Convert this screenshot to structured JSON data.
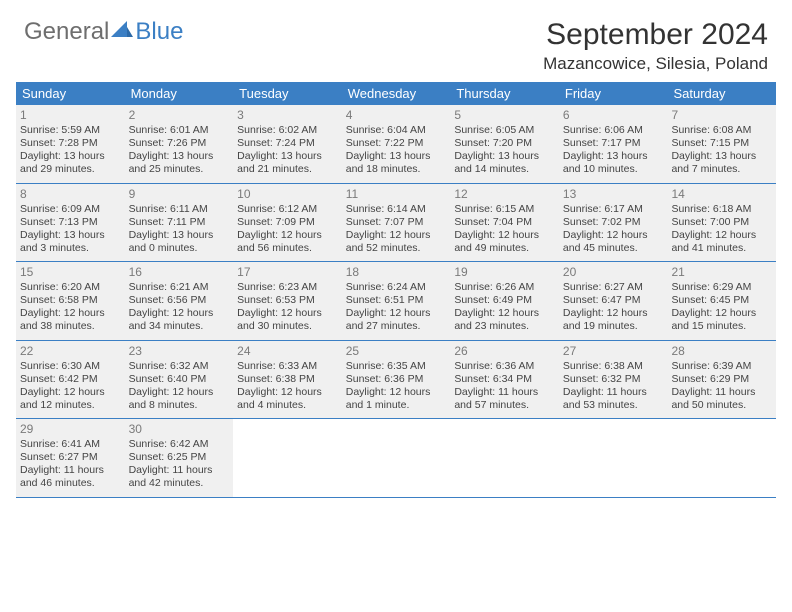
{
  "logo": {
    "text1": "General",
    "text2": "Blue"
  },
  "title": "September 2024",
  "location": "Mazancowice, Silesia, Poland",
  "colors": {
    "header_bg": "#3b7fc4",
    "header_text": "#ffffff",
    "cell_bg": "#f0f0f0",
    "cell_text": "#444444",
    "daynum": "#7a7a7a",
    "border": "#3b7fc4",
    "page_bg": "#ffffff",
    "logo_gray": "#6e6e6e",
    "logo_blue": "#3b7fc4"
  },
  "day_headers": [
    "Sunday",
    "Monday",
    "Tuesday",
    "Wednesday",
    "Thursday",
    "Friday",
    "Saturday"
  ],
  "weeks": [
    [
      {
        "n": "1",
        "sr": "Sunrise: 5:59 AM",
        "ss": "Sunset: 7:28 PM",
        "dl": "Daylight: 13 hours and 29 minutes."
      },
      {
        "n": "2",
        "sr": "Sunrise: 6:01 AM",
        "ss": "Sunset: 7:26 PM",
        "dl": "Daylight: 13 hours and 25 minutes."
      },
      {
        "n": "3",
        "sr": "Sunrise: 6:02 AM",
        "ss": "Sunset: 7:24 PM",
        "dl": "Daylight: 13 hours and 21 minutes."
      },
      {
        "n": "4",
        "sr": "Sunrise: 6:04 AM",
        "ss": "Sunset: 7:22 PM",
        "dl": "Daylight: 13 hours and 18 minutes."
      },
      {
        "n": "5",
        "sr": "Sunrise: 6:05 AM",
        "ss": "Sunset: 7:20 PM",
        "dl": "Daylight: 13 hours and 14 minutes."
      },
      {
        "n": "6",
        "sr": "Sunrise: 6:06 AM",
        "ss": "Sunset: 7:17 PM",
        "dl": "Daylight: 13 hours and 10 minutes."
      },
      {
        "n": "7",
        "sr": "Sunrise: 6:08 AM",
        "ss": "Sunset: 7:15 PM",
        "dl": "Daylight: 13 hours and 7 minutes."
      }
    ],
    [
      {
        "n": "8",
        "sr": "Sunrise: 6:09 AM",
        "ss": "Sunset: 7:13 PM",
        "dl": "Daylight: 13 hours and 3 minutes."
      },
      {
        "n": "9",
        "sr": "Sunrise: 6:11 AM",
        "ss": "Sunset: 7:11 PM",
        "dl": "Daylight: 13 hours and 0 minutes."
      },
      {
        "n": "10",
        "sr": "Sunrise: 6:12 AM",
        "ss": "Sunset: 7:09 PM",
        "dl": "Daylight: 12 hours and 56 minutes."
      },
      {
        "n": "11",
        "sr": "Sunrise: 6:14 AM",
        "ss": "Sunset: 7:07 PM",
        "dl": "Daylight: 12 hours and 52 minutes."
      },
      {
        "n": "12",
        "sr": "Sunrise: 6:15 AM",
        "ss": "Sunset: 7:04 PM",
        "dl": "Daylight: 12 hours and 49 minutes."
      },
      {
        "n": "13",
        "sr": "Sunrise: 6:17 AM",
        "ss": "Sunset: 7:02 PM",
        "dl": "Daylight: 12 hours and 45 minutes."
      },
      {
        "n": "14",
        "sr": "Sunrise: 6:18 AM",
        "ss": "Sunset: 7:00 PM",
        "dl": "Daylight: 12 hours and 41 minutes."
      }
    ],
    [
      {
        "n": "15",
        "sr": "Sunrise: 6:20 AM",
        "ss": "Sunset: 6:58 PM",
        "dl": "Daylight: 12 hours and 38 minutes."
      },
      {
        "n": "16",
        "sr": "Sunrise: 6:21 AM",
        "ss": "Sunset: 6:56 PM",
        "dl": "Daylight: 12 hours and 34 minutes."
      },
      {
        "n": "17",
        "sr": "Sunrise: 6:23 AM",
        "ss": "Sunset: 6:53 PM",
        "dl": "Daylight: 12 hours and 30 minutes."
      },
      {
        "n": "18",
        "sr": "Sunrise: 6:24 AM",
        "ss": "Sunset: 6:51 PM",
        "dl": "Daylight: 12 hours and 27 minutes."
      },
      {
        "n": "19",
        "sr": "Sunrise: 6:26 AM",
        "ss": "Sunset: 6:49 PM",
        "dl": "Daylight: 12 hours and 23 minutes."
      },
      {
        "n": "20",
        "sr": "Sunrise: 6:27 AM",
        "ss": "Sunset: 6:47 PM",
        "dl": "Daylight: 12 hours and 19 minutes."
      },
      {
        "n": "21",
        "sr": "Sunrise: 6:29 AM",
        "ss": "Sunset: 6:45 PM",
        "dl": "Daylight: 12 hours and 15 minutes."
      }
    ],
    [
      {
        "n": "22",
        "sr": "Sunrise: 6:30 AM",
        "ss": "Sunset: 6:42 PM",
        "dl": "Daylight: 12 hours and 12 minutes."
      },
      {
        "n": "23",
        "sr": "Sunrise: 6:32 AM",
        "ss": "Sunset: 6:40 PM",
        "dl": "Daylight: 12 hours and 8 minutes."
      },
      {
        "n": "24",
        "sr": "Sunrise: 6:33 AM",
        "ss": "Sunset: 6:38 PM",
        "dl": "Daylight: 12 hours and 4 minutes."
      },
      {
        "n": "25",
        "sr": "Sunrise: 6:35 AM",
        "ss": "Sunset: 6:36 PM",
        "dl": "Daylight: 12 hours and 1 minute."
      },
      {
        "n": "26",
        "sr": "Sunrise: 6:36 AM",
        "ss": "Sunset: 6:34 PM",
        "dl": "Daylight: 11 hours and 57 minutes."
      },
      {
        "n": "27",
        "sr": "Sunrise: 6:38 AM",
        "ss": "Sunset: 6:32 PM",
        "dl": "Daylight: 11 hours and 53 minutes."
      },
      {
        "n": "28",
        "sr": "Sunrise: 6:39 AM",
        "ss": "Sunset: 6:29 PM",
        "dl": "Daylight: 11 hours and 50 minutes."
      }
    ],
    [
      {
        "n": "29",
        "sr": "Sunrise: 6:41 AM",
        "ss": "Sunset: 6:27 PM",
        "dl": "Daylight: 11 hours and 46 minutes."
      },
      {
        "n": "30",
        "sr": "Sunrise: 6:42 AM",
        "ss": "Sunset: 6:25 PM",
        "dl": "Daylight: 11 hours and 42 minutes."
      },
      null,
      null,
      null,
      null,
      null
    ]
  ]
}
